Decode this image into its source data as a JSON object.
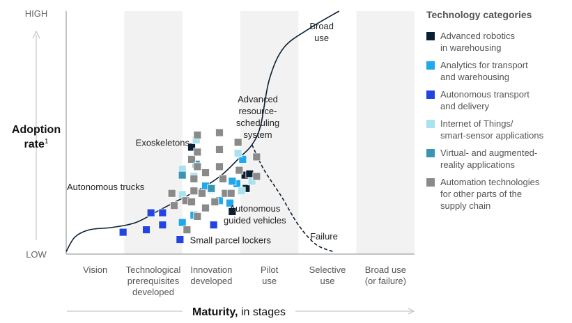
{
  "chart_data": {
    "type": "scatter",
    "title": "",
    "ylabel": "Adoption rate",
    "ylabel_superscript": "1",
    "xlabel": "Maturity,",
    "xlabel_suffix": "in stages",
    "y_ticks": {
      "high": "HIGH",
      "low": "LOW"
    },
    "stages": [
      "Vision",
      "Technological\nprerequisites\ndeveloped",
      "Innovation\ndeveloped",
      "Pilot\nuse",
      "Selective\nuse",
      "Broad use\n(or failure)"
    ],
    "shaded_stages": [
      1,
      3,
      5
    ],
    "grid": false,
    "legend_position": "right",
    "legend_title": "Technology categories",
    "categories": [
      {
        "key": "robotics",
        "label": "Advanced robotics\nin warehousing",
        "color": "#0b1f33"
      },
      {
        "key": "analytics",
        "label": "Analytics for transport\nand warehousing",
        "color": "#1fa8ea"
      },
      {
        "key": "autonomous",
        "label": "Autonomous transport\nand delivery",
        "color": "#2244e0"
      },
      {
        "key": "iot",
        "label": "Internet of Things/\nsmart-sensor applications",
        "color": "#a8e2ee"
      },
      {
        "key": "vr",
        "label": "Virtual- and augmented-\nreality applications",
        "color": "#3a94b3"
      },
      {
        "key": "automation",
        "label": "Automation technologies\nfor other parts of the\nsupply chain",
        "color": "#8a8a8a"
      }
    ],
    "curves": [
      {
        "name": "Broad use",
        "style": "solid",
        "color": "#0b1f33",
        "points": [
          [
            0,
            0.01
          ],
          [
            0.15,
            0.07
          ],
          [
            0.4,
            0.1
          ],
          [
            0.8,
            0.11
          ],
          [
            1.2,
            0.13
          ],
          [
            1.6,
            0.18
          ],
          [
            2.0,
            0.23
          ],
          [
            2.4,
            0.28
          ],
          [
            2.7,
            0.33
          ],
          [
            3.0,
            0.4
          ],
          [
            3.2,
            0.45
          ],
          [
            3.35,
            0.53
          ],
          [
            3.5,
            0.72
          ],
          [
            3.75,
            0.85
          ],
          [
            4.2,
            0.93
          ],
          [
            4.7,
            1.0
          ]
        ]
      },
      {
        "name": "Failure",
        "style": "dashed",
        "color": "#0b1f33",
        "points": [
          [
            3.2,
            0.45
          ],
          [
            3.4,
            0.35
          ],
          [
            3.7,
            0.24
          ],
          [
            4.0,
            0.12
          ],
          [
            4.3,
            0.04
          ],
          [
            4.6,
            0.01
          ]
        ]
      }
    ],
    "labels": [
      {
        "text": "Broad\nuse",
        "x": 4.4,
        "y": 0.925
      },
      {
        "text": "Failure",
        "x": 4.44,
        "y": 0.06
      },
      {
        "text": "Advanced\nresource-\nscheduling\nsystem",
        "x": 3.3,
        "y": 0.625
      },
      {
        "text": "Exoskeletons",
        "x": 1.66,
        "y": 0.446
      },
      {
        "text": "Autonomous trucks",
        "x": 0.68,
        "y": 0.263
      },
      {
        "text": "Autonomous\nguided vehicles",
        "x": 3.25,
        "y": 0.175
      },
      {
        "text": "Small parcel lockers",
        "x": 2.83,
        "y": 0.045
      }
    ],
    "points": [
      {
        "category": "robotics",
        "x": 3.08,
        "y": 0.325
      },
      {
        "category": "robotics",
        "x": 2.16,
        "y": 0.44
      },
      {
        "category": "robotics",
        "x": 3.1,
        "y": 0.27
      },
      {
        "category": "robotics",
        "x": 3.16,
        "y": 0.33
      },
      {
        "category": "robotics",
        "x": 2.86,
        "y": 0.175
      },
      {
        "category": "analytics",
        "x": 2.0,
        "y": 0.13
      },
      {
        "category": "analytics",
        "x": 2.2,
        "y": 0.16
      },
      {
        "category": "analytics",
        "x": 2.4,
        "y": 0.28
      },
      {
        "category": "analytics",
        "x": 2.64,
        "y": 0.22
      },
      {
        "category": "analytics",
        "x": 2.82,
        "y": 0.21
      },
      {
        "category": "analytics",
        "x": 2.94,
        "y": 0.29
      },
      {
        "category": "analytics",
        "x": 3.04,
        "y": 0.39
      },
      {
        "category": "analytics",
        "x": 2.86,
        "y": 0.3
      },
      {
        "category": "autonomous",
        "x": 0.98,
        "y": 0.09
      },
      {
        "category": "autonomous",
        "x": 1.38,
        "y": 0.1
      },
      {
        "category": "autonomous",
        "x": 1.66,
        "y": 0.12
      },
      {
        "category": "autonomous",
        "x": 1.46,
        "y": 0.17
      },
      {
        "category": "autonomous",
        "x": 1.66,
        "y": 0.17
      },
      {
        "category": "autonomous",
        "x": 1.96,
        "y": 0.06
      },
      {
        "category": "autonomous",
        "x": 2.54,
        "y": 0.12
      },
      {
        "category": "iot",
        "x": 2.24,
        "y": 0.47
      },
      {
        "category": "iot",
        "x": 2.0,
        "y": 0.35
      },
      {
        "category": "iot",
        "x": 2.0,
        "y": 0.245
      },
      {
        "category": "iot",
        "x": 2.2,
        "y": 0.32
      },
      {
        "category": "iot",
        "x": 2.5,
        "y": 0.265
      },
      {
        "category": "iot",
        "x": 2.96,
        "y": 0.415
      },
      {
        "category": "iot",
        "x": 3.2,
        "y": 0.3
      },
      {
        "category": "iot",
        "x": 3.02,
        "y": 0.26
      },
      {
        "category": "vr",
        "x": 2.0,
        "y": 0.325
      },
      {
        "category": "vr",
        "x": 2.24,
        "y": 0.37
      },
      {
        "category": "vr",
        "x": 2.5,
        "y": 0.27
      },
      {
        "category": "automation",
        "x": 1.82,
        "y": 0.25
      },
      {
        "category": "automation",
        "x": 1.86,
        "y": 0.2
      },
      {
        "category": "automation",
        "x": 2.06,
        "y": 0.22
      },
      {
        "category": "automation",
        "x": 2.2,
        "y": 0.26
      },
      {
        "category": "automation",
        "x": 2.16,
        "y": 0.39
      },
      {
        "category": "automation",
        "x": 2.26,
        "y": 0.36
      },
      {
        "category": "automation",
        "x": 2.26,
        "y": 0.42
      },
      {
        "category": "automation",
        "x": 2.26,
        "y": 0.49
      },
      {
        "category": "automation",
        "x": 2.2,
        "y": 0.31
      },
      {
        "category": "automation",
        "x": 2.34,
        "y": 0.25
      },
      {
        "category": "automation",
        "x": 2.16,
        "y": 0.215
      },
      {
        "category": "automation",
        "x": 2.08,
        "y": 0.1
      },
      {
        "category": "automation",
        "x": 2.26,
        "y": 0.155
      },
      {
        "category": "automation",
        "x": 2.4,
        "y": 0.19
      },
      {
        "category": "automation",
        "x": 2.56,
        "y": 0.215
      },
      {
        "category": "automation",
        "x": 2.74,
        "y": 0.25
      },
      {
        "category": "automation",
        "x": 2.7,
        "y": 0.31
      },
      {
        "category": "automation",
        "x": 2.64,
        "y": 0.5
      },
      {
        "category": "automation",
        "x": 2.64,
        "y": 0.43
      },
      {
        "category": "automation",
        "x": 2.64,
        "y": 0.36
      },
      {
        "category": "automation",
        "x": 2.4,
        "y": 0.335
      },
      {
        "category": "automation",
        "x": 2.96,
        "y": 0.46
      },
      {
        "category": "automation",
        "x": 2.98,
        "y": 0.345
      },
      {
        "category": "automation",
        "x": 3.28,
        "y": 0.4
      },
      {
        "category": "automation",
        "x": 3.28,
        "y": 0.32
      },
      {
        "category": "automation",
        "x": 2.84,
        "y": 0.25
      }
    ]
  }
}
